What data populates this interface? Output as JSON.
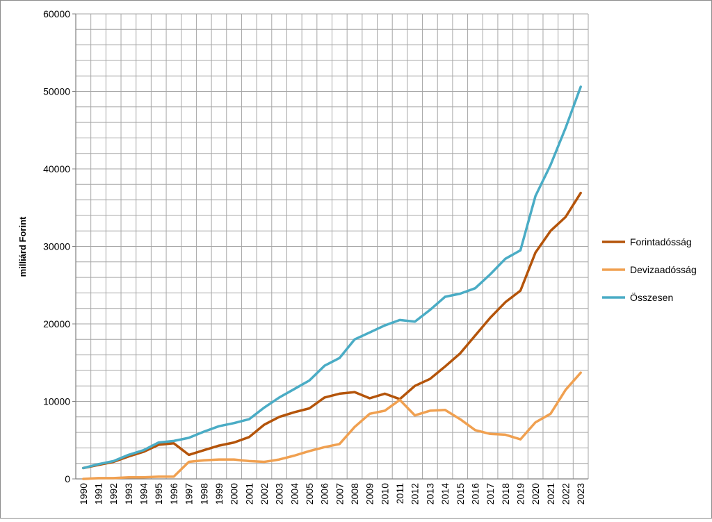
{
  "chart_data": {
    "type": "line",
    "title": "",
    "xlabel": "",
    "ylabel": "milliárd Forint",
    "ylim": [
      0,
      60000
    ],
    "yticks": [
      0,
      10000,
      20000,
      30000,
      40000,
      50000,
      60000
    ],
    "grid": true,
    "legend_position": "right",
    "x": [
      "1990",
      "1991",
      "1992",
      "1993",
      "1994",
      "1995",
      "1996",
      "1997",
      "1998",
      "1999",
      "2000",
      "2001",
      "2002",
      "2003",
      "2004",
      "2005",
      "2006",
      "2007",
      "2008",
      "2009",
      "2010",
      "2011",
      "2012",
      "2013",
      "2014",
      "2015",
      "2016",
      "2017",
      "2018",
      "2019",
      "2020",
      "2021",
      "2022",
      "2023"
    ],
    "series": [
      {
        "name": "Forintadósság",
        "color": "#b4540a",
        "values": [
          1400,
          1800,
          2200,
          2900,
          3500,
          4400,
          4600,
          3100,
          3700,
          4300,
          4700,
          5400,
          7000,
          8000,
          8600,
          9100,
          10500,
          11000,
          11200,
          10400,
          11000,
          10300,
          12000,
          12900,
          14500,
          16200,
          18500,
          20800,
          22800,
          24300,
          29200,
          32000,
          33800,
          36900
        ]
      },
      {
        "name": "Devizaadósság",
        "color": "#f0a050",
        "values": [
          0,
          100,
          100,
          200,
          200,
          300,
          300,
          2200,
          2400,
          2500,
          2500,
          2300,
          2200,
          2500,
          3000,
          3600,
          4100,
          4500,
          6700,
          8400,
          8800,
          10200,
          8200,
          8800,
          8900,
          7700,
          6300,
          5800,
          5700,
          5100,
          7300,
          8400,
          11500,
          13700
        ]
      },
      {
        "name": "Összesen",
        "color": "#4aacc5",
        "values": [
          1400,
          1900,
          2300,
          3100,
          3700,
          4700,
          4900,
          5300,
          6100,
          6800,
          7200,
          7700,
          9200,
          10500,
          11600,
          12700,
          14600,
          15600,
          18000,
          18900,
          19800,
          20500,
          20300,
          21800,
          23500,
          23900,
          24600,
          26400,
          28400,
          29500,
          36500,
          40500,
          45300,
          50600
        ]
      }
    ]
  }
}
